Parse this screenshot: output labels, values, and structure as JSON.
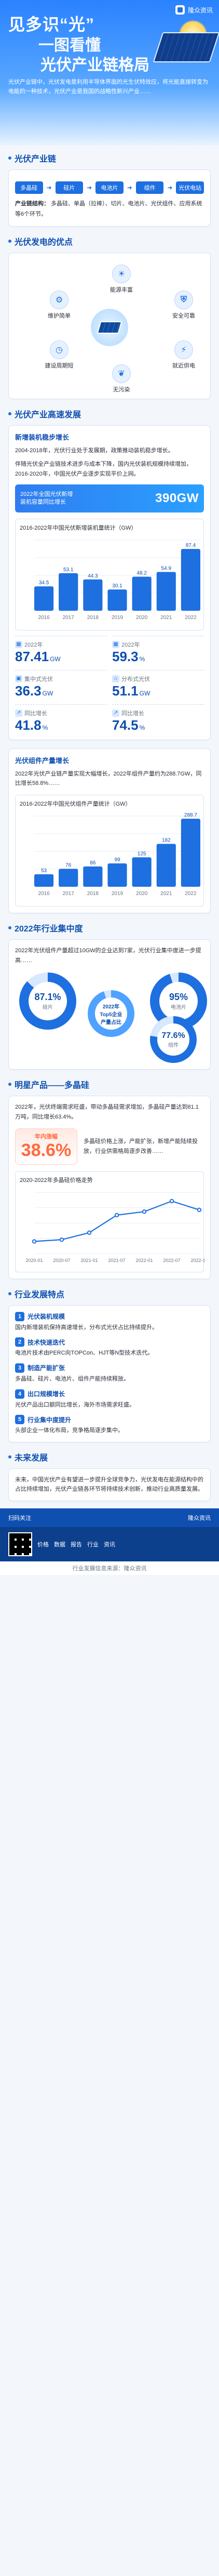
{
  "brand": {
    "name": "隆众资讯",
    "colors": {
      "primary": "#1e6fe0",
      "primary_dark": "#0f4fb0",
      "light": "#e8f1ff",
      "accent": "#ff6a3d"
    }
  },
  "hero": {
    "title_1": "见多识“光”",
    "title_2": "一图看懂",
    "title_3": "光伏产业链格局",
    "intro": "光伏产业链中，光伏发电是利用半导体界面的光生伏特效应，将光能直接转变为电能的一种技术，光伏产业是我国的战略性新兴产业……"
  },
  "chain": {
    "title": "光伏产业链",
    "flow": [
      "多晶硅",
      "硅片",
      "电池片",
      "组件",
      "光伏电站"
    ],
    "desc_title": "产业链结构：",
    "desc": "多晶硅、单晶（拉棒）、切片、电池片、光伏组件、应用系统等6个环节。"
  },
  "advantages": {
    "title": "光伏发电的优点",
    "center": "光伏发电",
    "items": [
      {
        "label": "能源丰富",
        "icon": "sun-icon"
      },
      {
        "label": "安全可靠",
        "icon": "shield-icon"
      },
      {
        "label": "就近供电",
        "icon": "plug-icon"
      },
      {
        "label": "无污染",
        "icon": "leaf-icon"
      },
      {
        "label": "建设周期短",
        "icon": "clock-icon"
      },
      {
        "label": "维护简单",
        "icon": "wrench-icon"
      }
    ]
  },
  "development": {
    "title": "光伏产业高速发展",
    "card_title": "新增装机稳步增长",
    "para_1": "2004-2018年，光伏行业处于发展期，政策推动装机稳步增长。",
    "para_2": "伴随光伏全产业链技术进步与成本下降，国内光伏装机规模持续增加，2016-2020年，中国光伏产业逐步实现平价上网。",
    "highlight": {
      "text_1": "2022年全国光伏新增",
      "text_2": "装机容量同比增长",
      "value": "390GW"
    },
    "chart_1_title": "2016-2022年中国光伏新增装机量统计（GW）",
    "stats_1": [
      {
        "k": "2022年",
        "v": "87.41",
        "u": "GW"
      },
      {
        "k": "2022年",
        "v": "59.3",
        "u": "%"
      }
    ],
    "stats_2": [
      {
        "k": "集中式光伏",
        "v": "36.3",
        "u": "GW"
      },
      {
        "k": "分布式光伏",
        "v": "51.1",
        "u": "GW"
      },
      {
        "k": "同比增长",
        "v": "41.8",
        "u": "%"
      },
      {
        "k": "同比增长",
        "v": "74.5",
        "u": "%"
      }
    ]
  },
  "module": {
    "title": "光伏组件产量增长",
    "para": "2022年光伏产业链产量实现大幅增长，2022年组件产量约为288.7GW，同比增长58.8%……",
    "chart_title": "2016-2022年中国光伏组件产量统计（GW）"
  },
  "concentration": {
    "title": "2022年行业集中度",
    "para": "2022年光伏组件产量超过10GW的企业达到7家，光伏行业集中度进一步提高……",
    "donut_1": {
      "pct": "87.1%",
      "label": "硅片"
    },
    "donut_2": {
      "pct": "95%",
      "label": "电池片"
    },
    "donut_3": {
      "pct": "77.6%",
      "label": "组件"
    },
    "center_text": "2022年\nTop5企业\n产量占比"
  },
  "polysilicon": {
    "title": "明星产品——多晶硅",
    "para_1": "2022年，光伏终端需求旺盛，带动多晶硅需求增加，多晶硅产量达到81.1万吨，同比增长63.4%。",
    "highlight": {
      "label": "年内涨幅",
      "value": "38.6%"
    },
    "para_2": "多晶硅价格上涨，产能扩张，新增产能陆续投放，行业供需格局逐步改善……",
    "chart_title": "2020-2022年多晶硅价格走势"
  },
  "features": {
    "title": "行业发展特点",
    "items": [
      {
        "n": "1",
        "head": "光伏装机规模",
        "desc": "国内新增装机保持高速增长，分布式光伏占比持续提升。"
      },
      {
        "n": "2",
        "head": "技术快速迭代",
        "desc": "电池片技术由PERC向TOPCon、HJT等N型技术迭代。"
      },
      {
        "n": "3",
        "head": "制造产能扩张",
        "desc": "多晶硅、硅片、电池片、组件产能持续释放。"
      },
      {
        "n": "4",
        "head": "出口规模增长",
        "desc": "光伏产品出口额同比增长，海外市场需求旺盛。"
      },
      {
        "n": "5",
        "head": "行业集中度提升",
        "desc": "头部企业一体化布局，竞争格局逐步集中。"
      }
    ]
  },
  "future": {
    "title": "未来发展",
    "para": "未来，中国光伏产业有望进一步提升全球竞争力，光伏发电在能源结构中的占比持续增加，光伏产业链各环节将持续技术创新，推动行业高质量发展。",
    "footer_top_left": "扫码关注",
    "footer_top_right": "隆众资讯",
    "footer_links": [
      "价格",
      "数据",
      "报告",
      "行业",
      "资讯"
    ],
    "footer_note": "行业发展信息来源：隆众资讯"
  },
  "chart_data": [
    {
      "type": "bar",
      "title": "2016-2022年中国光伏新增装机量统计（GW）",
      "categories": [
        "2016",
        "2017",
        "2018",
        "2019",
        "2020",
        "2021",
        "2022"
      ],
      "series": [
        {
          "name": "新增装机",
          "values": [
            34.5,
            53.1,
            44.3,
            30.1,
            48.2,
            54.9,
            87.4
          ]
        }
      ],
      "ylim": [
        0,
        100
      ]
    },
    {
      "type": "bar",
      "title": "2016-2022年中国光伏组件产量统计（GW）",
      "categories": [
        "2016",
        "2017",
        "2018",
        "2019",
        "2020",
        "2021",
        "2022"
      ],
      "series": [
        {
          "name": "组件产量",
          "values": [
            53,
            76,
            86,
            99,
            125,
            182,
            288.7
          ]
        }
      ],
      "ylim": [
        0,
        300
      ]
    },
    {
      "type": "line",
      "title": "2020-2022年多晶硅价格走势",
      "x": [
        "2020-01",
        "2020-07",
        "2021-01",
        "2021-07",
        "2022-01",
        "2022-07",
        "2022-12"
      ],
      "series": [
        {
          "name": "多晶硅价格",
          "values": [
            7,
            8,
            12,
            22,
            24,
            30,
            25
          ]
        }
      ],
      "ylim": [
        0,
        35
      ]
    }
  ]
}
